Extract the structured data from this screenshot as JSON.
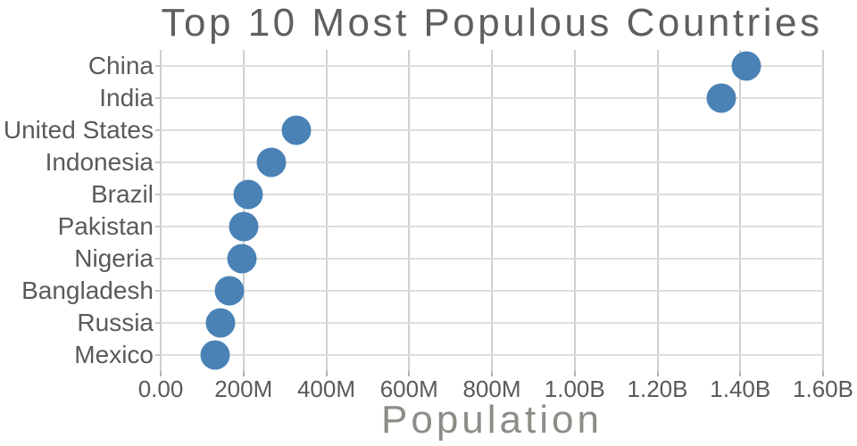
{
  "chart_data": {
    "type": "scatter",
    "title": "Top 10 Most Populous Countries",
    "xlabel": "Population",
    "ylabel": "",
    "categories": [
      "China",
      "India",
      "United States",
      "Indonesia",
      "Brazil",
      "Pakistan",
      "Nigeria",
      "Bangladesh",
      "Russia",
      "Mexico"
    ],
    "values": [
      1415045928,
      1354051854,
      326766748,
      266794980,
      210867954,
      200813818,
      195875237,
      166368149,
      143964709,
      130759074
    ],
    "xlim": [
      0,
      1600000000
    ],
    "x_tick_values": [
      0,
      200000000,
      400000000,
      600000000,
      800000000,
      1000000000,
      1200000000,
      1400000000,
      1600000000
    ],
    "x_tick_labels": [
      "0.00",
      "200M",
      "400M",
      "600M",
      "800M",
      "1.00B",
      "1.20B",
      "1.40B",
      "1.60B"
    ],
    "grid": "both",
    "legend": "none",
    "marker_color": "#4a82b6",
    "marker_diameter_px": 33,
    "grid_color_h": "#dededa",
    "grid_color_v": "#cfcfcb",
    "title_color": "#5f5f5f",
    "tick_label_color": "#5a5a5a",
    "xlabel_color": "#8e8c86",
    "background_color": "#ffffff"
  }
}
